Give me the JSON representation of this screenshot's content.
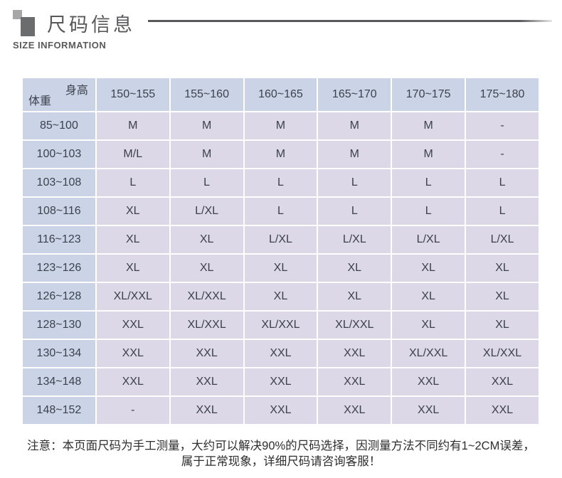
{
  "header": {
    "title": "尺码信息",
    "subtitle": "SIZE INFORMATION"
  },
  "table": {
    "corner": {
      "top_right": "身高",
      "bottom_left": "体重"
    },
    "columns": [
      "150~155",
      "155~160",
      "160~165",
      "165~170",
      "170~175",
      "175~180"
    ],
    "rows": [
      {
        "weight": "85~100",
        "sizes": [
          "M",
          "M",
          "M",
          "M",
          "M",
          "-"
        ]
      },
      {
        "weight": "100~103",
        "sizes": [
          "M/L",
          "M",
          "M",
          "M",
          "M",
          "-"
        ]
      },
      {
        "weight": "103~108",
        "sizes": [
          "L",
          "L",
          "L",
          "L",
          "L",
          "L"
        ]
      },
      {
        "weight": "108~116",
        "sizes": [
          "XL",
          "L/XL",
          "L",
          "L",
          "L",
          "L"
        ]
      },
      {
        "weight": "116~123",
        "sizes": [
          "XL",
          "XL",
          "L/XL",
          "L/XL",
          "L/XL",
          "L/XL"
        ]
      },
      {
        "weight": "123~126",
        "sizes": [
          "XL",
          "XL",
          "XL",
          "XL",
          "XL",
          "XL"
        ]
      },
      {
        "weight": "126~128",
        "sizes": [
          "XL/XXL",
          "XL/XXL",
          "XL",
          "XL",
          "XL",
          "XL"
        ]
      },
      {
        "weight": "128~130",
        "sizes": [
          "XXL",
          "XL/XXL",
          "XL/XXL",
          "XL/XXL",
          "XL",
          "XL"
        ]
      },
      {
        "weight": "130~134",
        "sizes": [
          "XXL",
          "XXL",
          "XXL",
          "XXL",
          "XL/XXL",
          "XL/XXL"
        ]
      },
      {
        "weight": "134~148",
        "sizes": [
          "XXL",
          "XXL",
          "XXL",
          "XXL",
          "XXL",
          "XXL"
        ]
      },
      {
        "weight": "148~152",
        "sizes": [
          "-",
          "XXL",
          "XXL",
          "XXL",
          "XXL",
          "XXL"
        ]
      }
    ]
  },
  "note": {
    "line1": "注意：本页面尺码为手工测量，大约可以解决90%的尺码选择，因测量方法不同约有1~2CM误差，",
    "line2": "属于正常现象，详细尺码请咨询客服！"
  },
  "colors": {
    "header_cell_bg": "#cbd4e6",
    "data_cell_bg": "#dcd8e7",
    "cell_text": "#3c414c",
    "title_text": "#58595b",
    "logo_light_square": "#a7a7a9",
    "logo_dark_square": "#6b6c6e"
  }
}
